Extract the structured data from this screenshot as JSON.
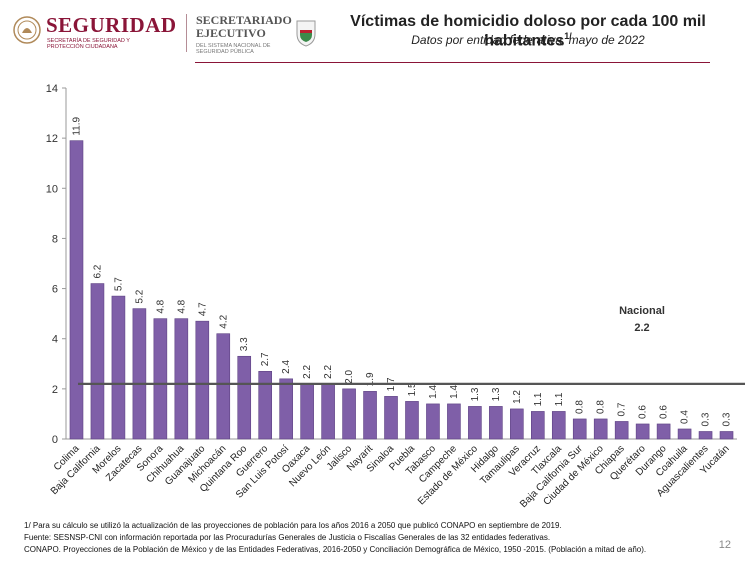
{
  "header": {
    "brand_main": "SEGURIDAD",
    "brand_sub": "SECRETARÍA DE SEGURIDAD Y PROTECCIÓN CIUDADANA",
    "brand2_line1": "SECRETARIADO",
    "brand2_line2": "EJECUTIVO",
    "brand2_sub": "DEL SISTEMA NACIONAL DE SEGURIDAD PÚBLICA",
    "title": "Víctimas de homicidio doloso por cada 100 mil habitantes",
    "title_note": "1/",
    "subtitle": "Datos por entidad federativa, mayo de 2022"
  },
  "chart_data": {
    "type": "bar",
    "categories": [
      "Colima",
      "Baja California",
      "Morelos",
      "Zacatecas",
      "Sonora",
      "Chihuahua",
      "Guanajuato",
      "Michoacán",
      "Quintana Roo",
      "Guerrero",
      "San Luis Potosí",
      "Oaxaca",
      "Nuevo León",
      "Jalisco",
      "Nayarit",
      "Sinaloa",
      "Puebla",
      "Tabasco",
      "Campeche",
      "Estado de México",
      "Hidalgo",
      "Tamaulipas",
      "Veracruz",
      "Tlaxcala",
      "Baja California Sur",
      "Ciudad de México",
      "Chiapas",
      "Querétaro",
      "Durango",
      "Coahuila",
      "Aguascalientes",
      "Yucatán"
    ],
    "values": [
      11.9,
      6.2,
      5.7,
      5.2,
      4.8,
      4.8,
      4.7,
      4.2,
      3.3,
      2.7,
      2.4,
      2.2,
      2.2,
      2.0,
      1.9,
      1.7,
      1.5,
      1.4,
      1.4,
      1.3,
      1.3,
      1.2,
      1.1,
      1.1,
      0.8,
      0.8,
      0.7,
      0.6,
      0.6,
      0.4,
      0.3,
      0.3
    ],
    "value_labels": [
      "11.9",
      "6.2",
      "5.7",
      "5.2",
      "4.8",
      "4.8",
      "4.7",
      "4.2",
      "3.3",
      "2.7",
      "2.4",
      "2.2",
      "2.2",
      "2.0",
      "1.9",
      "1.7",
      "1.5",
      "1.4",
      "1.4",
      "1.3",
      "1.3",
      "1.2",
      "1.1",
      "1.1",
      "0.8",
      "0.8",
      "0.7",
      "0.6",
      "0.6",
      "0.4",
      "0.3",
      "0.3"
    ],
    "yticks": [
      "0",
      "2",
      "4",
      "6",
      "8",
      "10",
      "12",
      "14"
    ],
    "ylim": [
      0,
      14
    ],
    "reference_line": {
      "label": "Nacional",
      "value": 2.2,
      "value_label": "2.2"
    },
    "bar_color": "#7f5fa8",
    "line_color": "#555555",
    "grid": false
  },
  "footer": {
    "note1": "1/ Para su cálculo se utilizó la actualización de las proyecciones de población para los años 2016 a 2050 que publicó CONAPO en septiembre de 2019.",
    "note2": "Fuente: SESNSP-CNI con información reportada por las Procuradurías Generales de Justicia o Fiscalías Generales de las 32 entidades federativas.",
    "note3": "CONAPO. Proyecciones de la Población de México y de las Entidades Federativas, 2016-2050 y Conciliación Demográfica de México, 1950 -2015. (Población a mitad de año)."
  },
  "page_number": "12"
}
